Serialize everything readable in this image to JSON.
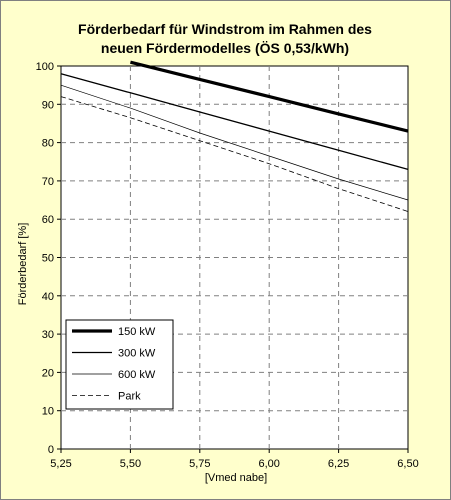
{
  "chart_data": {
    "type": "line",
    "title_line1": "Förderbedarf für Windstrom im Rahmen des",
    "title_line2": "neuen Fördermodelles (ÖS 0,53/kWh)",
    "xlabel": "[Vmed nabe]",
    "ylabel": "Förderbedarf [%]",
    "xlim": [
      5.25,
      6.5
    ],
    "ylim": [
      0,
      100
    ],
    "x_ticks": [
      5.25,
      5.5,
      5.75,
      6.0,
      6.25,
      6.5
    ],
    "x_tick_labels": [
      "5,25",
      "5,50",
      "5,75",
      "6,00",
      "6,25",
      "6,50"
    ],
    "y_ticks": [
      0,
      10,
      20,
      30,
      40,
      50,
      60,
      70,
      80,
      90,
      100
    ],
    "y_tick_labels": [
      "0",
      "10",
      "20",
      "30",
      "40",
      "50",
      "60",
      "70",
      "80",
      "90",
      "100"
    ],
    "grid": "dashed",
    "legend_position": "bottom-left",
    "series": [
      {
        "name": "150 kW",
        "style": "thick",
        "x": [
          5.5,
          5.75,
          6.0,
          6.25,
          6.5
        ],
        "values": [
          101,
          96.5,
          92,
          87.5,
          83
        ]
      },
      {
        "name": "300 kW",
        "style": "medium",
        "x": [
          5.25,
          5.5,
          5.75,
          6.0,
          6.25,
          6.5
        ],
        "values": [
          98,
          93,
          88,
          83,
          78,
          73
        ]
      },
      {
        "name": "600 kW",
        "style": "thin",
        "x": [
          5.25,
          5.5,
          5.75,
          6.0,
          6.25,
          6.5
        ],
        "values": [
          95,
          89,
          82.5,
          76.5,
          70.5,
          65
        ]
      },
      {
        "name": "Park",
        "style": "dashed",
        "x": [
          5.25,
          5.5,
          5.75,
          6.0,
          6.25,
          6.5
        ],
        "values": [
          92,
          86.5,
          80.5,
          74.5,
          68,
          62
        ]
      }
    ],
    "colors": {
      "background": "#ffffcc",
      "plot_background": "#ffffff",
      "line": "#000000",
      "grid": "#808080"
    }
  }
}
